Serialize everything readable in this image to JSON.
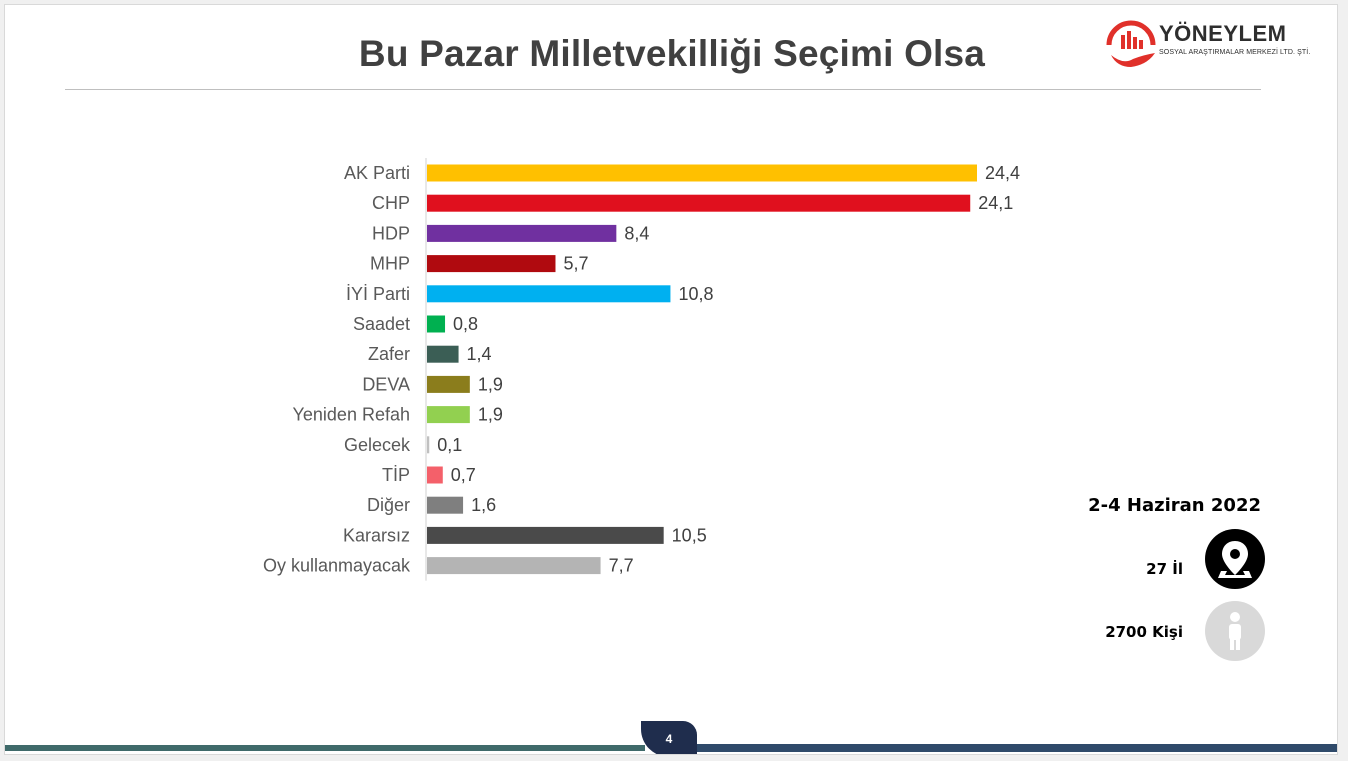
{
  "slide": {
    "title": "Bu Pazar Milletvekilliği Seçimi Olsa",
    "page_number": "4"
  },
  "logo": {
    "name": "YÖNEYLEM",
    "subtitle": "SOSYAL ARAŞTIRMALAR MERKEZİ LTD. ŞTİ.",
    "icon": "building-hand-logo",
    "colors": {
      "accent": "#e0302a",
      "text": "#2e2e2e"
    }
  },
  "info": {
    "date": "2-4 Haziran 2022",
    "cities": {
      "label": "27 İl",
      "icon": "location-pin-icon",
      "circle_color": "#000000"
    },
    "people": {
      "label": "2700 Kişi",
      "icon": "person-icon",
      "circle_color": "#d9d9d9"
    }
  },
  "chart_data": {
    "type": "bar",
    "orientation": "horizontal",
    "title": "",
    "xlabel": "",
    "ylabel": "",
    "xlim": [
      0,
      25
    ],
    "grid": false,
    "legend": "none",
    "categories": [
      "AK Parti",
      "CHP",
      "HDP",
      "MHP",
      "İYİ Parti",
      "Saadet",
      "Zafer",
      "DEVA",
      "Yeniden Refah",
      "Gelecek",
      "TİP",
      "Diğer",
      "Kararsız",
      "Oy kullanmayacak"
    ],
    "values": [
      24.4,
      24.1,
      8.4,
      5.7,
      10.8,
      0.8,
      1.4,
      1.9,
      1.9,
      0.1,
      0.7,
      1.6,
      10.5,
      7.7
    ],
    "value_labels": [
      "24,4",
      "24,1",
      "8,4",
      "5,7",
      "10,8",
      "0,8",
      "1,4",
      "1,9",
      "1,9",
      "0,1",
      "0,7",
      "1,6",
      "10,5",
      "7,7"
    ],
    "colors": [
      "#ffc000",
      "#e0101e",
      "#7030a0",
      "#b00a0f",
      "#00b0f0",
      "#00b050",
      "#3b5e55",
      "#8b7d1c",
      "#92d050",
      "#c0c0c0",
      "#f4606a",
      "#7f7f7f",
      "#4a4a4a",
      "#b4b4b4"
    ]
  }
}
